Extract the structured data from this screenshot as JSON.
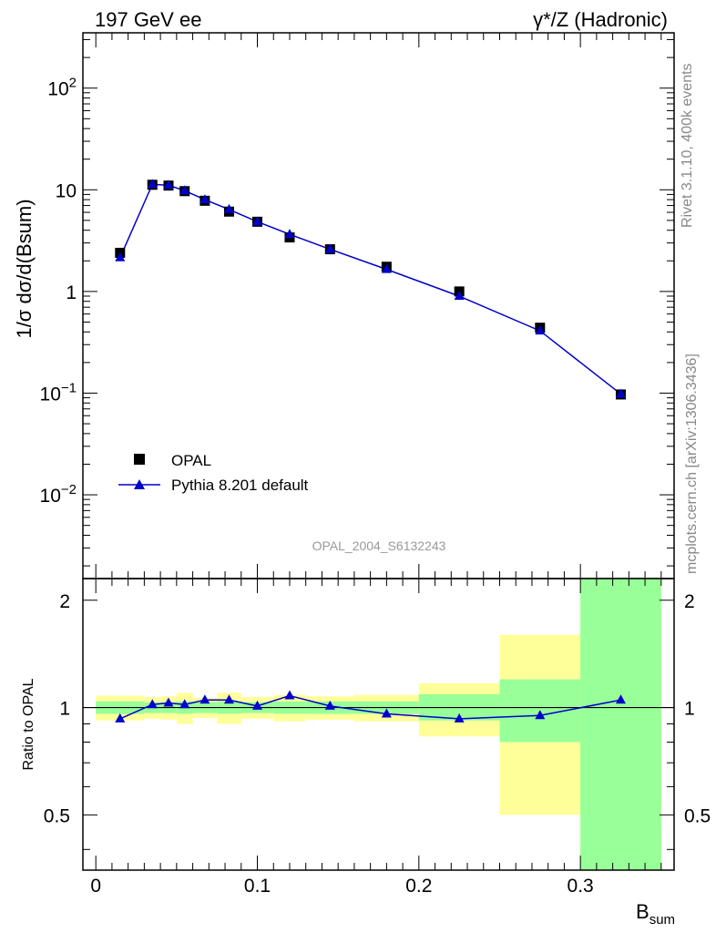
{
  "header": {
    "left_title": "197 GeV ee",
    "right_title_prefix": "γ*/Z (Hadronic)"
  },
  "side_notes": {
    "rivet": "Rivet 3.1.10,  400k events",
    "mcplots": "mcplots.cern.ch [arXiv:1306.3436]"
  },
  "watermark": "OPAL_2004_S6132243",
  "legend": {
    "data_label": "OPAL",
    "mc_label": "Pythia 8.201 default"
  },
  "colors": {
    "data": "#000000",
    "mc": "#0000cc",
    "band_stat": "#99ff99",
    "band_total": "#ffff99",
    "ratio_line": "#000000"
  },
  "chart_data": [
    {
      "type": "scatter",
      "role": "main",
      "ylabel": "1/σ dσ/d(Bsum)",
      "yscale": "log",
      "ylim": [
        0.0015,
        350
      ],
      "xlim": [
        -0.008,
        0.358
      ],
      "y_ticks": [
        {
          "value": 100,
          "label": "10",
          "sup": "2"
        },
        {
          "value": 10,
          "label": "10",
          "sup": ""
        },
        {
          "value": 1,
          "label": "1",
          "sup": ""
        },
        {
          "value": 0.1,
          "label": "10",
          "sup": "−1"
        },
        {
          "value": 0.01,
          "label": "10",
          "sup": "−2"
        }
      ],
      "series": [
        {
          "name": "OPAL",
          "marker": "square",
          "x": [
            0.015,
            0.035,
            0.045,
            0.055,
            0.0675,
            0.0825,
            0.1,
            0.12,
            0.145,
            0.18,
            0.225,
            0.275,
            0.325
          ],
          "y": [
            2.4,
            11.2,
            11.0,
            9.7,
            7.8,
            6.1,
            4.85,
            3.4,
            2.6,
            1.75,
            1.0,
            0.44,
            0.097
          ]
        },
        {
          "name": "Pythia 8.201 default",
          "marker": "triangle",
          "x": [
            0.015,
            0.035,
            0.045,
            0.055,
            0.0675,
            0.0825,
            0.1,
            0.12,
            0.145,
            0.18,
            0.225,
            0.275,
            0.325
          ],
          "y": [
            2.15,
            11.3,
            11.1,
            9.8,
            8.0,
            6.4,
            4.85,
            3.65,
            2.6,
            1.65,
            0.9,
            0.41,
            0.098
          ]
        }
      ]
    },
    {
      "type": "line",
      "role": "ratio",
      "ylabel": "Ratio to OPAL",
      "xlabel": "Bsum",
      "ylim": [
        0.35,
        2.3
      ],
      "xlim": [
        -0.008,
        0.358
      ],
      "x_ticks": [
        {
          "value": 0,
          "label": "0"
        },
        {
          "value": 0.1,
          "label": "0.1"
        },
        {
          "value": 0.2,
          "label": "0.2"
        },
        {
          "value": 0.3,
          "label": "0.3"
        }
      ],
      "y_ticks": [
        {
          "value": 0.5,
          "label": "0.5"
        },
        {
          "value": 1,
          "label": "1"
        },
        {
          "value": 2,
          "label": "2"
        }
      ],
      "bands": [
        {
          "xlo": 0.0,
          "xhi": 0.03,
          "stat": [
            0.96,
            1.04
          ],
          "total": [
            0.92,
            1.08
          ]
        },
        {
          "xlo": 0.03,
          "xhi": 0.04,
          "stat": [
            0.965,
            1.035
          ],
          "total": [
            0.93,
            1.07
          ]
        },
        {
          "xlo": 0.04,
          "xhi": 0.05,
          "stat": [
            0.965,
            1.035
          ],
          "total": [
            0.925,
            1.075
          ]
        },
        {
          "xlo": 0.05,
          "xhi": 0.06,
          "stat": [
            0.96,
            1.04
          ],
          "total": [
            0.9,
            1.1
          ]
        },
        {
          "xlo": 0.06,
          "xhi": 0.075,
          "stat": [
            0.965,
            1.035
          ],
          "total": [
            0.935,
            1.065
          ]
        },
        {
          "xlo": 0.075,
          "xhi": 0.09,
          "stat": [
            0.96,
            1.04
          ],
          "total": [
            0.9,
            1.1
          ]
        },
        {
          "xlo": 0.09,
          "xhi": 0.11,
          "stat": [
            0.965,
            1.035
          ],
          "total": [
            0.93,
            1.07
          ]
        },
        {
          "xlo": 0.11,
          "xhi": 0.13,
          "stat": [
            0.96,
            1.04
          ],
          "total": [
            0.915,
            1.085
          ]
        },
        {
          "xlo": 0.13,
          "xhi": 0.16,
          "stat": [
            0.96,
            1.04
          ],
          "total": [
            0.925,
            1.075
          ]
        },
        {
          "xlo": 0.16,
          "xhi": 0.2,
          "stat": [
            0.96,
            1.04
          ],
          "total": [
            0.915,
            1.085
          ]
        },
        {
          "xlo": 0.2,
          "xhi": 0.25,
          "stat": [
            0.92,
            1.09
          ],
          "total": [
            0.83,
            1.17
          ]
        },
        {
          "xlo": 0.25,
          "xhi": 0.3,
          "stat": [
            0.8,
            1.2
          ],
          "total": [
            0.5,
            1.6
          ]
        },
        {
          "xlo": 0.3,
          "xhi": 0.35,
          "stat": [
            0.35,
            2.3
          ],
          "total": [
            0.35,
            2.3
          ]
        }
      ],
      "series": [
        {
          "name": "Pythia 8.201 default",
          "marker": "triangle",
          "x": [
            0.015,
            0.035,
            0.045,
            0.055,
            0.0675,
            0.0825,
            0.1,
            0.12,
            0.145,
            0.18,
            0.225,
            0.275,
            0.325
          ],
          "y": [
            0.93,
            1.02,
            1.03,
            1.02,
            1.05,
            1.05,
            1.01,
            1.08,
            1.01,
            0.96,
            0.93,
            0.95,
            1.05
          ]
        }
      ]
    }
  ]
}
